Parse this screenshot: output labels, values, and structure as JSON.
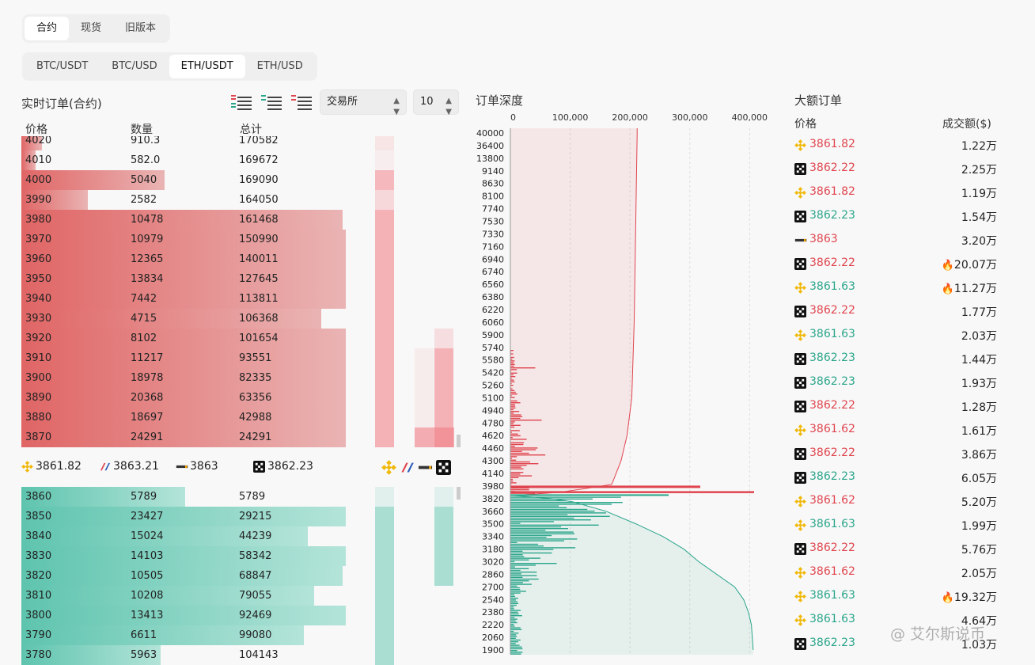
{
  "tabs_market": [
    {
      "label": "合约",
      "active": true
    },
    {
      "label": "现货",
      "active": false
    },
    {
      "label": "旧版本",
      "active": false
    }
  ],
  "tabs_pair": [
    {
      "label": "BTC/USDT",
      "active": false
    },
    {
      "label": "BTC/USD",
      "active": false
    },
    {
      "label": "ETH/USDT",
      "active": true
    },
    {
      "label": "ETH/USD",
      "active": false
    }
  ],
  "orderbook": {
    "title": "实时订单(合约)",
    "col_price": "价格",
    "col_qty": "数量",
    "col_total": "总计",
    "exchange_select": "交易所",
    "depth_select": "10",
    "asks": [
      {
        "price": "4020",
        "qty": "910.3",
        "total": "170582",
        "bar": 0.06
      },
      {
        "price": "4010",
        "qty": "582.0",
        "total": "169672",
        "bar": 0.04
      },
      {
        "price": "4000",
        "qty": "5040",
        "total": "169090",
        "bar": 0.41
      },
      {
        "price": "3990",
        "qty": "2582",
        "total": "164050",
        "bar": 0.19
      },
      {
        "price": "3980",
        "qty": "10478",
        "total": "161468",
        "bar": 0.92
      },
      {
        "price": "3970",
        "qty": "10979",
        "total": "150990",
        "bar": 0.93
      },
      {
        "price": "3960",
        "qty": "12365",
        "total": "140011",
        "bar": 0.93
      },
      {
        "price": "3950",
        "qty": "13834",
        "total": "127645",
        "bar": 0.93
      },
      {
        "price": "3940",
        "qty": "7442",
        "total": "113811",
        "bar": 0.93
      },
      {
        "price": "3930",
        "qty": "4715",
        "total": "106368",
        "bar": 0.86
      },
      {
        "price": "3920",
        "qty": "8102",
        "total": "101654",
        "bar": 0.93
      },
      {
        "price": "3910",
        "qty": "11217",
        "total": "93551",
        "bar": 0.93
      },
      {
        "price": "3900",
        "qty": "18978",
        "total": "82335",
        "bar": 0.93
      },
      {
        "price": "3890",
        "qty": "20368",
        "total": "63356",
        "bar": 0.93
      },
      {
        "price": "3880",
        "qty": "18697",
        "total": "42988",
        "bar": 0.93
      },
      {
        "price": "3870",
        "qty": "24291",
        "total": "24291",
        "bar": 0.93
      }
    ],
    "bids": [
      {
        "price": "3860",
        "qty": "5789",
        "total": "5789",
        "bar": 0.47
      },
      {
        "price": "3850",
        "qty": "23427",
        "total": "29215",
        "bar": 0.93
      },
      {
        "price": "3840",
        "qty": "15024",
        "total": "44239",
        "bar": 0.82
      },
      {
        "price": "3830",
        "qty": "14103",
        "total": "58342",
        "bar": 0.93
      },
      {
        "price": "3820",
        "qty": "10505",
        "total": "68847",
        "bar": 0.92
      },
      {
        "price": "3810",
        "qty": "10208",
        "total": "79055",
        "bar": 0.84
      },
      {
        "price": "3800",
        "qty": "13413",
        "total": "92469",
        "bar": 0.93
      },
      {
        "price": "3790",
        "qty": "6611",
        "total": "99080",
        "bar": 0.81
      },
      {
        "price": "3780",
        "qty": "5963",
        "total": "104143",
        "bar": 0.4
      }
    ],
    "mid_prices": [
      {
        "exchange": "binance-icon",
        "price": "3861.82"
      },
      {
        "exchange": "bitmex-icon",
        "price": "3863.21"
      },
      {
        "exchange": "bybit-icon",
        "price": "3863"
      },
      {
        "exchange": "okx-icon",
        "price": "3862.23"
      }
    ]
  },
  "depth": {
    "title": "订单深度",
    "x_ticks": [
      "0",
      "100,000",
      "200,000",
      "300,000",
      "400,000"
    ],
    "y_ticks": [
      "40000",
      "36400",
      "13800",
      "9140",
      "8630",
      "8100",
      "7740",
      "7530",
      "7330",
      "7160",
      "6940",
      "6740",
      "6560",
      "6380",
      "6220",
      "6060",
      "5900",
      "5740",
      "5580",
      "5420",
      "5260",
      "5100",
      "4940",
      "4780",
      "4620",
      "4460",
      "4300",
      "4140",
      "3980",
      "3820",
      "3660",
      "3500",
      "3340",
      "3180",
      "3020",
      "2860",
      "2700",
      "2540",
      "2380",
      "2220",
      "2060",
      "1900"
    ]
  },
  "chart_data": {
    "type": "area",
    "title": "订单深度",
    "xlim": [
      0,
      430000
    ],
    "x_ticks": [
      0,
      100000,
      200000,
      300000,
      400000
    ],
    "series": [
      {
        "name": "",
        "side": "ask",
        "color": "#e0454f",
        "values": [
          [
            3870,
            24291
          ],
          [
            3900,
            82335
          ],
          [
            3950,
            127645
          ],
          [
            4000,
            169090
          ],
          [
            4020,
            170582
          ],
          [
            4300,
            185000
          ],
          [
            4620,
            195000
          ],
          [
            5100,
            203000
          ],
          [
            6060,
            207000
          ],
          [
            7740,
            210000
          ],
          [
            9140,
            211000
          ],
          [
            40000,
            212000
          ]
        ]
      },
      {
        "name": "",
        "side": "bid",
        "color": "#2aa58a",
        "values": [
          [
            3860,
            5789
          ],
          [
            3820,
            68847
          ],
          [
            3780,
            104143
          ],
          [
            3660,
            160000
          ],
          [
            3500,
            210000
          ],
          [
            3340,
            255000
          ],
          [
            3180,
            290000
          ],
          [
            3020,
            315000
          ],
          [
            2860,
            345000
          ],
          [
            2700,
            375000
          ],
          [
            2540,
            390000
          ],
          [
            2380,
            398000
          ],
          [
            2220,
            403000
          ],
          [
            1900,
            406000
          ]
        ]
      }
    ]
  },
  "bigorders": {
    "title": "大额订单",
    "col_price": "价格",
    "col_amount": "成交额($)",
    "rows": [
      {
        "ex": "binance",
        "price": "3861.82",
        "side": "red",
        "amount": "1.22万",
        "fire": false
      },
      {
        "ex": "okx",
        "price": "3862.22",
        "side": "red",
        "amount": "2.25万",
        "fire": false
      },
      {
        "ex": "binance",
        "price": "3861.82",
        "side": "red",
        "amount": "1.19万",
        "fire": false
      },
      {
        "ex": "okx",
        "price": "3862.23",
        "side": "green",
        "amount": "1.54万",
        "fire": false
      },
      {
        "ex": "bybit",
        "price": "3863",
        "side": "red",
        "amount": "3.20万",
        "fire": false
      },
      {
        "ex": "okx",
        "price": "3862.22",
        "side": "red",
        "amount": "20.07万",
        "fire": true
      },
      {
        "ex": "binance",
        "price": "3861.63",
        "side": "green",
        "amount": "11.27万",
        "fire": true
      },
      {
        "ex": "okx",
        "price": "3862.22",
        "side": "red",
        "amount": "1.77万",
        "fire": false
      },
      {
        "ex": "binance",
        "price": "3861.63",
        "side": "green",
        "amount": "2.03万",
        "fire": false
      },
      {
        "ex": "okx",
        "price": "3862.23",
        "side": "green",
        "amount": "1.44万",
        "fire": false
      },
      {
        "ex": "okx",
        "price": "3862.23",
        "side": "green",
        "amount": "1.93万",
        "fire": false
      },
      {
        "ex": "okx",
        "price": "3862.22",
        "side": "red",
        "amount": "1.28万",
        "fire": false
      },
      {
        "ex": "binance",
        "price": "3861.62",
        "side": "red",
        "amount": "1.61万",
        "fire": false
      },
      {
        "ex": "okx",
        "price": "3862.22",
        "side": "red",
        "amount": "3.86万",
        "fire": false
      },
      {
        "ex": "okx",
        "price": "3862.23",
        "side": "green",
        "amount": "6.05万",
        "fire": false
      },
      {
        "ex": "binance",
        "price": "3861.62",
        "side": "red",
        "amount": "5.20万",
        "fire": false
      },
      {
        "ex": "binance",
        "price": "3861.63",
        "side": "green",
        "amount": "1.99万",
        "fire": false
      },
      {
        "ex": "okx",
        "price": "3862.22",
        "side": "red",
        "amount": "5.76万",
        "fire": false
      },
      {
        "ex": "binance",
        "price": "3861.62",
        "side": "red",
        "amount": "2.05万",
        "fire": false
      },
      {
        "ex": "binance",
        "price": "3861.63",
        "side": "green",
        "amount": "19.32万",
        "fire": true
      },
      {
        "ex": "binance",
        "price": "3861.63",
        "side": "green",
        "amount": "4.64万",
        "fire": false
      },
      {
        "ex": "okx",
        "price": "3862.23",
        "side": "green",
        "amount": "1.03万",
        "fire": false
      }
    ]
  },
  "watermark": "@ 艾尔斯说币"
}
